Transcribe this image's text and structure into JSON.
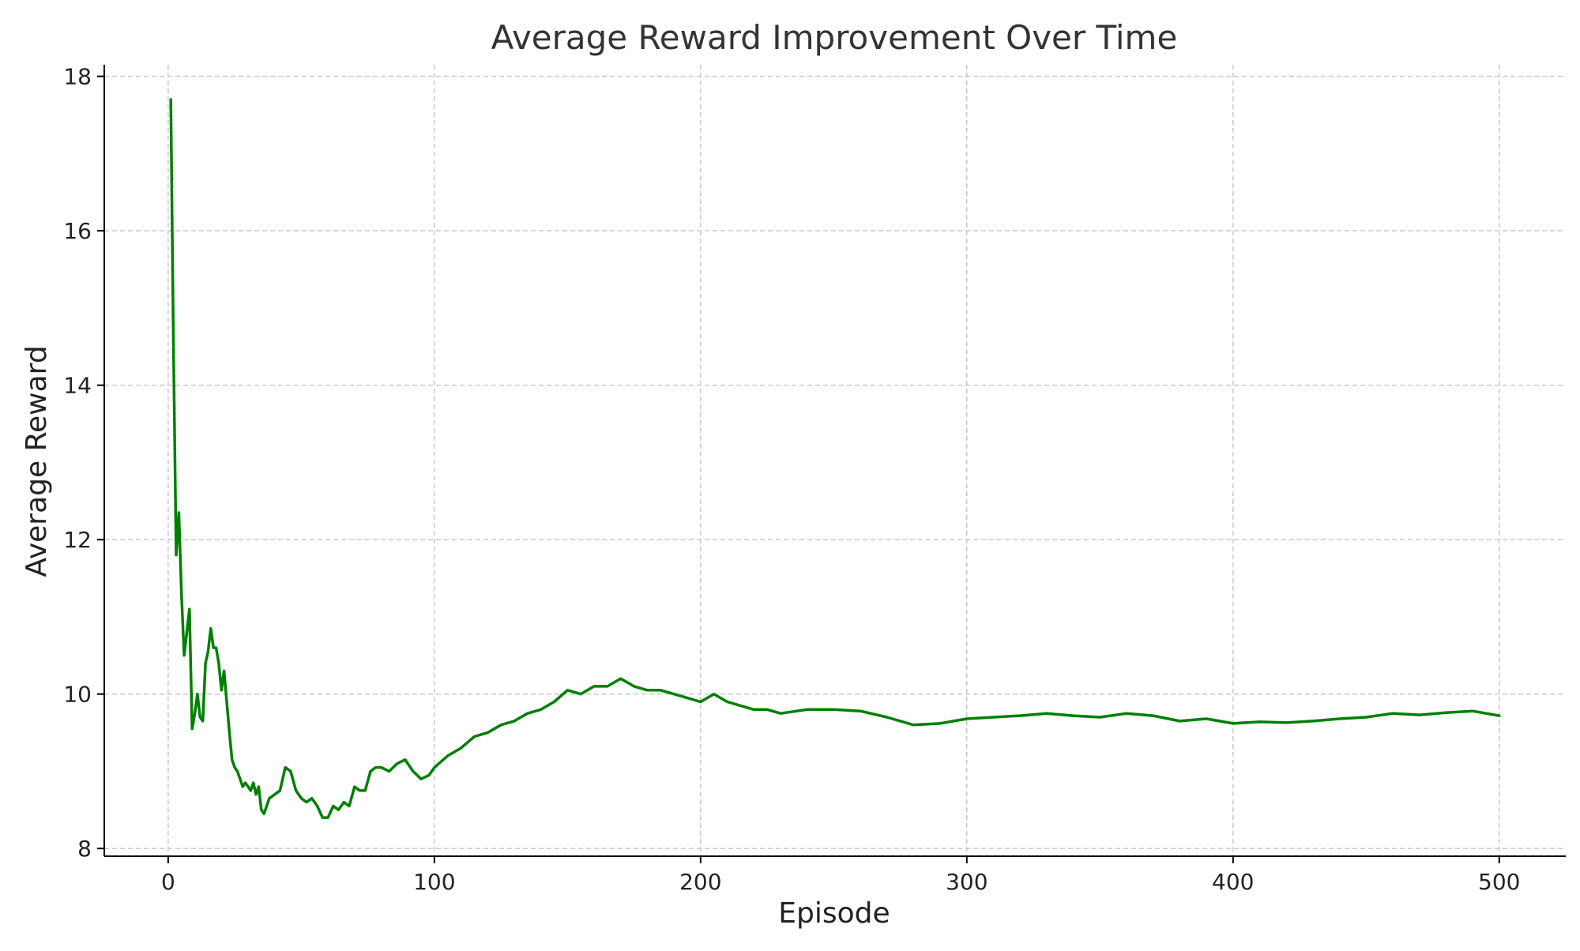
{
  "chart_data": {
    "type": "line",
    "title": "Average Reward Improvement Over Time",
    "xlabel": "Episode",
    "ylabel": "Average Reward",
    "xlim": [
      -24,
      525
    ],
    "ylim": [
      7.9,
      18.15
    ],
    "xticks": [
      0,
      100,
      200,
      300,
      400,
      500
    ],
    "yticks": [
      8,
      10,
      12,
      14,
      16,
      18
    ],
    "grid": true,
    "series": [
      {
        "color": "#008000",
        "x": [
          1,
          2,
          3,
          4,
          5,
          6,
          7,
          8,
          9,
          10,
          11,
          12,
          13,
          14,
          15,
          16,
          17,
          18,
          19,
          20,
          21,
          22,
          23,
          24,
          25,
          26,
          27,
          28,
          29,
          30,
          31,
          32,
          33,
          34,
          35,
          36,
          38,
          40,
          42,
          44,
          46,
          48,
          50,
          52,
          54,
          56,
          58,
          60,
          62,
          64,
          66,
          68,
          70,
          72,
          74,
          76,
          78,
          80,
          83,
          86,
          89,
          92,
          95,
          98,
          100,
          105,
          110,
          115,
          120,
          125,
          130,
          135,
          140,
          145,
          150,
          155,
          160,
          165,
          170,
          175,
          180,
          185,
          190,
          195,
          200,
          205,
          210,
          215,
          220,
          225,
          230,
          240,
          250,
          260,
          270,
          280,
          290,
          300,
          310,
          320,
          330,
          340,
          350,
          360,
          370,
          380,
          390,
          400,
          410,
          420,
          430,
          440,
          450,
          460,
          470,
          480,
          490,
          500
        ],
        "y": [
          17.7,
          14.5,
          11.8,
          12.35,
          11.3,
          10.5,
          10.8,
          11.1,
          9.55,
          9.75,
          10.0,
          9.7,
          9.65,
          10.4,
          10.55,
          10.85,
          10.6,
          10.6,
          10.4,
          10.05,
          10.3,
          9.9,
          9.5,
          9.15,
          9.05,
          9.0,
          8.9,
          8.8,
          8.85,
          8.8,
          8.75,
          8.85,
          8.7,
          8.8,
          8.5,
          8.45,
          8.65,
          8.7,
          8.75,
          9.05,
          9.0,
          8.75,
          8.65,
          8.6,
          8.65,
          8.55,
          8.4,
          8.4,
          8.55,
          8.5,
          8.6,
          8.55,
          8.8,
          8.75,
          8.75,
          9.0,
          9.05,
          9.05,
          9.0,
          9.1,
          9.15,
          9.0,
          8.9,
          8.95,
          9.05,
          9.2,
          9.3,
          9.45,
          9.5,
          9.6,
          9.65,
          9.75,
          9.8,
          9.9,
          10.05,
          10.0,
          10.1,
          10.1,
          10.2,
          10.1,
          10.05,
          10.05,
          10.0,
          9.95,
          9.9,
          10.0,
          9.9,
          9.85,
          9.8,
          9.8,
          9.75,
          9.8,
          9.8,
          9.78,
          9.7,
          9.6,
          9.62,
          9.68,
          9.7,
          9.72,
          9.75,
          9.72,
          9.7,
          9.75,
          9.72,
          9.65,
          9.68,
          9.62,
          9.64,
          9.63,
          9.65,
          9.68,
          9.7,
          9.75,
          9.73,
          9.76,
          9.78,
          9.72
        ]
      }
    ]
  }
}
